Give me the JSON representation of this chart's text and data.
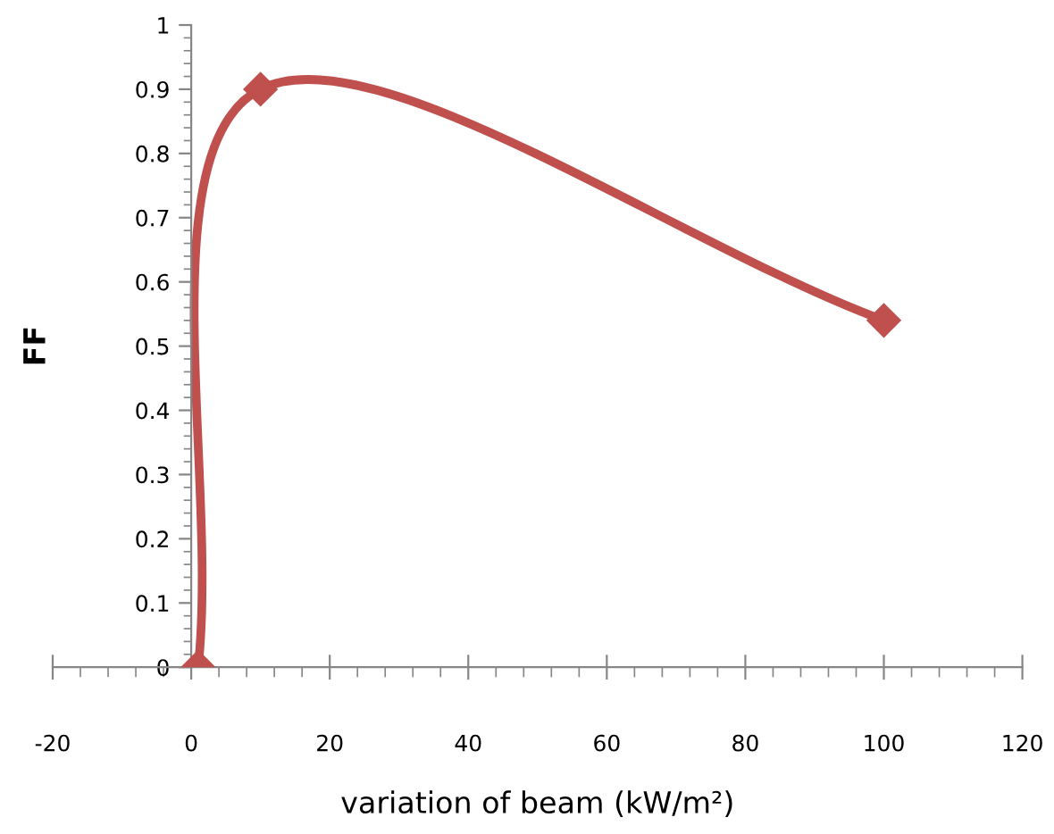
{
  "chart_data": {
    "type": "line",
    "xlabel": "variation of beam (kW/m²)",
    "ylabel": "FF",
    "series": [
      {
        "color": "#c0504d",
        "x": [
          1,
          10,
          100
        ],
        "values": [
          0,
          0.9,
          0.54
        ]
      }
    ],
    "xlim": [
      -20,
      120
    ],
    "xticks": [
      -20,
      0,
      20,
      40,
      60,
      80,
      100,
      120
    ],
    "ylim": [
      0,
      1
    ],
    "yticks": [
      0,
      0.1,
      0.2,
      0.3,
      0.4,
      0.5,
      0.6,
      0.7,
      0.8,
      0.9,
      1
    ],
    "marker": "diamond",
    "line_style": "solid",
    "grid": false,
    "legend": false
  }
}
